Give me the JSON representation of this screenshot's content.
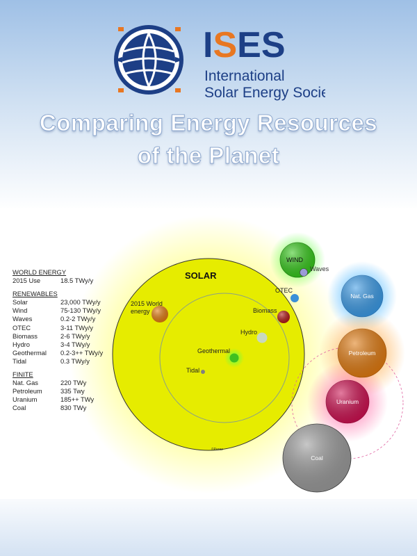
{
  "logo": {
    "acronym": "ISES",
    "line1": "International",
    "line2": "Solar Energy Society"
  },
  "title": {
    "line1": "Comparing Energy Resources",
    "line2": "of the Planet"
  },
  "legend": {
    "world": {
      "heading": "WORLD ENERGY",
      "items": [
        {
          "name": "2015 Use",
          "value": "18.5 TWy/y"
        }
      ]
    },
    "renewables": {
      "heading": "RENEWABLES",
      "items": [
        {
          "name": "Solar",
          "value": "23,000 TWy/y"
        },
        {
          "name": "Wind",
          "value": "75-130 TWy/y"
        },
        {
          "name": "Waves",
          "value": "0.2-2 TWy/y"
        },
        {
          "name": "OTEC",
          "value": "3-11  TWy/y"
        },
        {
          "name": "Biomass",
          "value": "2-6 TWy/y"
        },
        {
          "name": "Hydro",
          "value": "3-4 TWy/y"
        },
        {
          "name": "Geothermal",
          "value": "0.2-3++ TWy/y"
        },
        {
          "name": "Tidal",
          "value": "0.3 TWy/y"
        }
      ]
    },
    "finite": {
      "heading": "FINITE",
      "items": [
        {
          "name": "Nat. Gas",
          "value": "220 TWy"
        },
        {
          "name": "Petroleum",
          "value": "335 Twy"
        },
        {
          "name": "Uranium",
          "value": "185++ TWy"
        },
        {
          "name": "Coal",
          "value": "830 TWy"
        }
      ]
    }
  },
  "diagram": {
    "solar_label": "SOLAR",
    "copyright": "©Perez",
    "labels": {
      "world": "2015 World",
      "world2": "energy",
      "wind": "WIND",
      "waves": "Waves",
      "otec": "OTEC",
      "biomass": "Biomass",
      "hydro": "Hydro",
      "geothermal": "Geothermal",
      "tidal": "Tidal",
      "gas": "Nat. Gas",
      "petroleum": "Petroleum",
      "uranium": "Uranium",
      "coal": "Coal"
    },
    "colors": {
      "solar": "#e6ec00",
      "world": "#e07a10",
      "wind": "#35c81a",
      "waves": "#9a9ad8",
      "otec": "#3a90d8",
      "biomass": "#b01818",
      "hydro": "#c8d8c0",
      "geothermal": "#40c020",
      "tidal": "#808080",
      "gas": "#3a9ae6",
      "petroleum": "#e07a10",
      "uranium": "#cc1050",
      "coal": "#9a9a9a"
    }
  }
}
